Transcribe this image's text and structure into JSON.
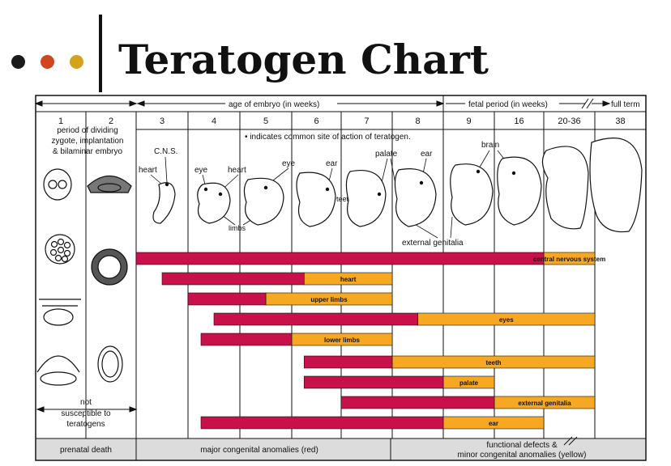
{
  "header": {
    "title": "Teratogen Chart",
    "bullet_colors": [
      "#1a1a1a",
      "#d0461f",
      "#d4a21c"
    ]
  },
  "colors": {
    "red": "#c8104a",
    "yellow": "#f7a823",
    "band": "#dcdcdc"
  },
  "top_ruler": {
    "embryo_label": "age of embryo (in weeks)",
    "fetal_label": "fetal period (in weeks)",
    "full_term_label": "full term"
  },
  "weeks": [
    "1",
    "2",
    "3",
    "4",
    "5",
    "6",
    "7",
    "8",
    "9",
    "16",
    "20-36",
    "38"
  ],
  "week1_note": [
    "period of dividing",
    "zygote, implantation",
    "& bilaminar embryo"
  ],
  "legend_note": "• indicates common site of action of teratogen.",
  "anatomy_labels": {
    "cns": "C.N.S.",
    "heart_w3": "heart",
    "eye_w4": "eye",
    "heart_w4": "heart",
    "eye_w5": "eye",
    "limbs": "limbs",
    "ear_w6": "ear",
    "teeth": "teeth",
    "palate": "palate",
    "ear_w8": "ear",
    "brain": "brain",
    "external_genitalia": "external genitalia"
  },
  "not_susceptible": [
    "not",
    "susceptible to",
    "teratogens"
  ],
  "bottom_band": {
    "prenatal": "prenatal death",
    "major": "major congenital anomalies (red)",
    "functional_1": "functional defects &",
    "functional_2": "minor congenital anomalies (yellow)"
  },
  "chart_data": {
    "type": "timeline",
    "unit": "weeks",
    "columns": [
      "1",
      "2",
      "3",
      "4",
      "5",
      "6",
      "7",
      "8",
      "9",
      "16",
      "20-36",
      "38"
    ],
    "legend": {
      "red": "major congenital anomalies (red)",
      "yellow": "functional defects & minor congenital anomalies (yellow)"
    },
    "rows": [
      {
        "label": "central nervous system",
        "red": [
          "3",
          "20-36"
        ],
        "yellow": [
          "20-36",
          "38"
        ]
      },
      {
        "label": "heart",
        "red": [
          "3.5",
          "6.25"
        ],
        "yellow": [
          "6.25",
          "8"
        ]
      },
      {
        "label": "upper limbs",
        "red": [
          "4",
          "5.5"
        ],
        "yellow": [
          "5.5",
          "8"
        ]
      },
      {
        "label": "eyes",
        "red": [
          "4.5",
          "8.5"
        ],
        "yellow": [
          "8.5",
          "38"
        ]
      },
      {
        "label": "lower limbs",
        "red": [
          "4.25",
          "6"
        ],
        "yellow": [
          "6",
          "8"
        ]
      },
      {
        "label": "teeth",
        "red": [
          "6.25",
          "8"
        ],
        "yellow": [
          "8",
          "38"
        ]
      },
      {
        "label": "palate",
        "red": [
          "6.25",
          "9"
        ],
        "yellow": [
          "9",
          "16"
        ]
      },
      {
        "label": "external genitalia",
        "red": [
          "7",
          "16"
        ],
        "yellow": [
          "16",
          "38"
        ]
      },
      {
        "label": "ear",
        "red": [
          "4.25",
          "9"
        ],
        "yellow": [
          "9",
          "20-36"
        ]
      }
    ]
  }
}
